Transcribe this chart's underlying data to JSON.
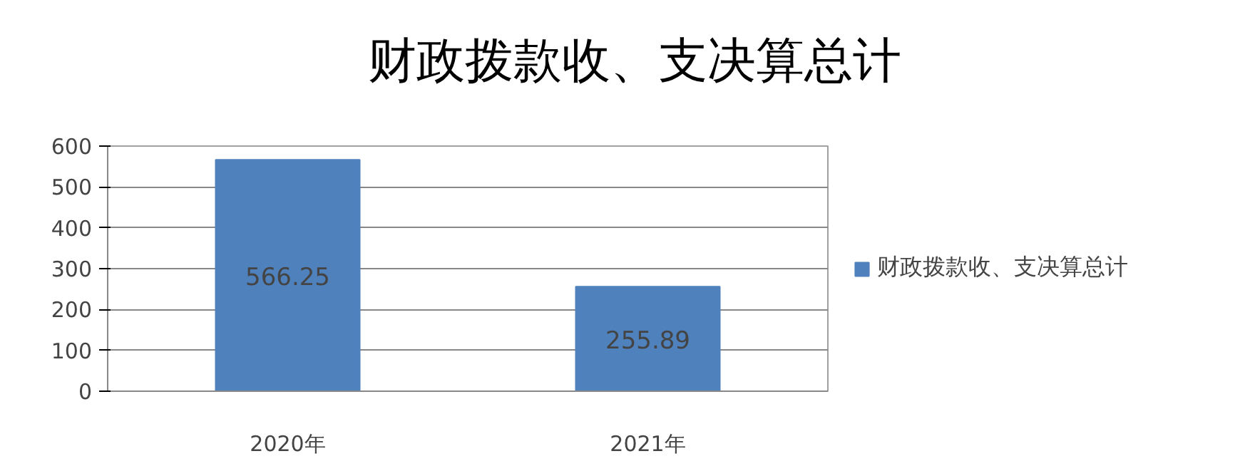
{
  "chart_data": {
    "type": "bar",
    "title": "财政拨款收、支决算总计",
    "categories": [
      "2020年",
      "2021年"
    ],
    "series": [
      {
        "name": "财政拨款收、支决算总计",
        "color": "#4f81bd",
        "values": [
          566.25,
          255.89
        ]
      }
    ],
    "ylim": [
      0,
      600
    ],
    "yticks": [
      0,
      100,
      200,
      300,
      400,
      500,
      600
    ],
    "grid": "y",
    "legend": "right",
    "data_labels": true
  }
}
